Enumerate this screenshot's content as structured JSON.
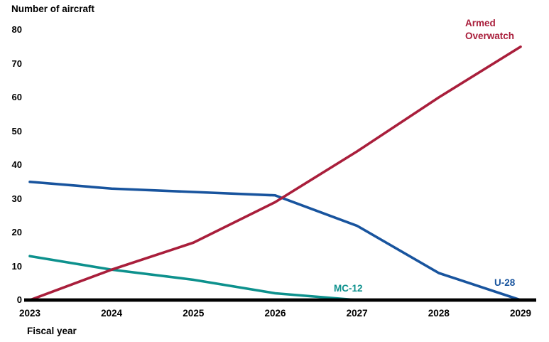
{
  "chart_data": {
    "type": "line",
    "y_axis_title": "Number of aircraft",
    "x_axis_title": "Fiscal year",
    "categories": [
      "2023",
      "2024",
      "2025",
      "2026",
      "2027",
      "2028",
      "2029"
    ],
    "y_ticks": [
      0,
      10,
      20,
      30,
      40,
      50,
      60,
      70,
      80
    ],
    "ylim": [
      0,
      80
    ],
    "grid": false,
    "legend_position": "inline-labels-near-line-ends",
    "axis_color": "#000000",
    "series": [
      {
        "name": "Armed Overwatch",
        "color": "#A91E3B",
        "values": [
          0,
          9,
          17,
          29,
          44,
          60,
          75
        ]
      },
      {
        "name": "U-28",
        "color": "#18549E",
        "values": [
          35,
          33,
          32,
          31,
          22,
          8,
          0
        ]
      },
      {
        "name": "MC-12",
        "color": "#0D918D",
        "values": [
          13,
          9,
          6,
          2,
          0,
          null,
          null
        ]
      }
    ]
  }
}
